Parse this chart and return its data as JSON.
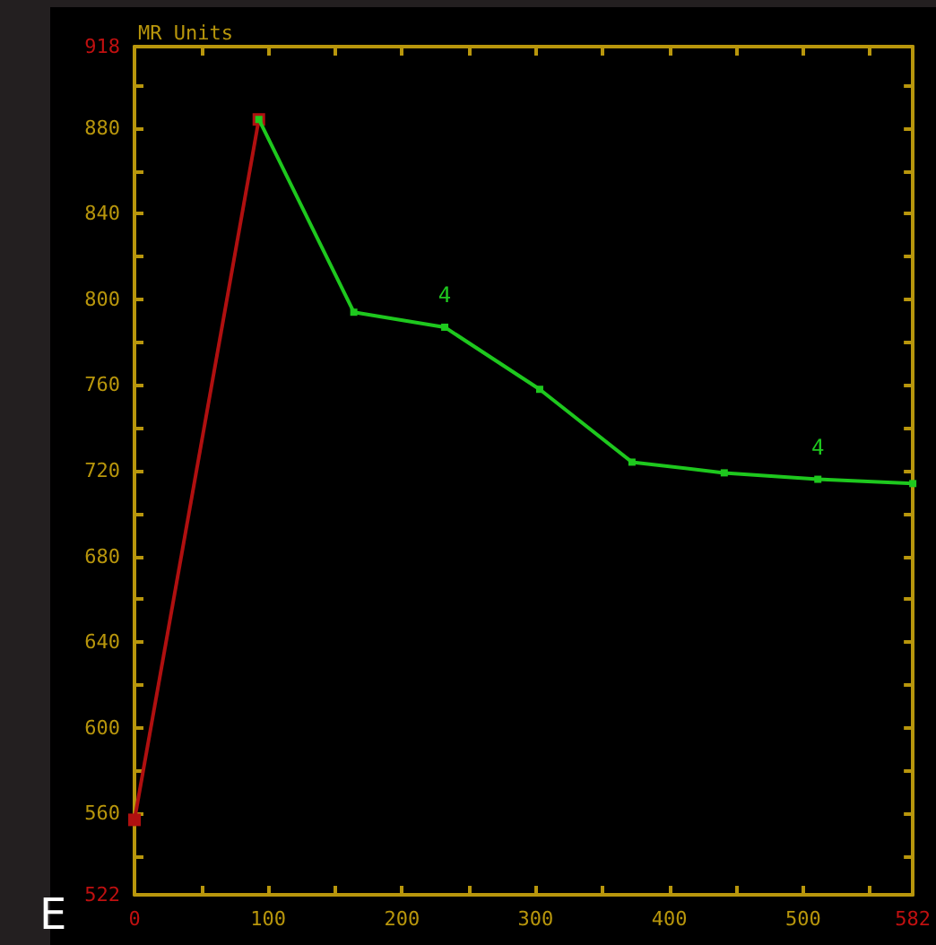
{
  "chart_data": {
    "type": "line",
    "ylabel": "MR Units",
    "marker": "square",
    "grid": false,
    "annotations": [
      {
        "text": "4",
        "x": 232,
        "y": 787
      },
      {
        "text": "4",
        "x": 511,
        "y": 716
      },
      "E"
    ],
    "xlim": [
      0,
      582
    ],
    "ylim": [
      522,
      918
    ],
    "xticks": [
      0,
      {
        "value": 50,
        "label": null
      },
      100,
      {
        "value": 150,
        "label": null
      },
      200,
      {
        "value": 250,
        "label": null
      },
      300,
      {
        "value": 350,
        "label": null
      },
      400,
      {
        "value": 450,
        "label": null
      },
      500,
      {
        "value": 550,
        "label": null
      },
      582
    ],
    "yticks": [
      522,
      {
        "value": 540,
        "label": null
      },
      560,
      {
        "value": 580,
        "label": null
      },
      600,
      {
        "value": 620,
        "label": null
      },
      640,
      {
        "value": 660,
        "label": null
      },
      680,
      {
        "value": 700,
        "label": null
      },
      720,
      {
        "value": 740,
        "label": null
      },
      760,
      {
        "value": 780,
        "label": null
      },
      800,
      {
        "value": 820,
        "label": null
      },
      840,
      {
        "value": 860,
        "label": null
      },
      880,
      {
        "value": 900,
        "label": null
      },
      918
    ],
    "series": [
      {
        "color": "#b01010",
        "x": [
          0,
          93
        ],
        "values": [
          557,
          884
        ]
      },
      {
        "color": "#1ec81e",
        "x": [
          93,
          164,
          232,
          303,
          372,
          441,
          511,
          582
        ],
        "values": [
          884,
          794,
          787,
          758,
          724,
          719,
          716,
          714
        ]
      }
    ]
  }
}
